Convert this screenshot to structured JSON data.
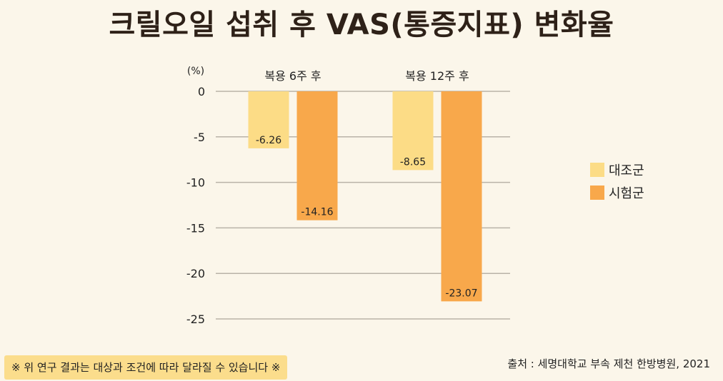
{
  "title": "크릴오일 섭취 후 VAS(통증지표) 변화율",
  "disclaimer": "※ 위 연구 결과는 대상과 조건에 따라 달라질 수 있습니다 ※",
  "source": "출처 : 세명대학교 부속 제천 한방병원, 2021",
  "chart_data": {
    "type": "bar",
    "unit_label": "(%)",
    "categories": [
      "복용 6주 후",
      "복용 12주 후"
    ],
    "series": [
      {
        "name": "대조군",
        "values": [
          -6.26,
          -8.65
        ],
        "color": "#fcdc86"
      },
      {
        "name": "시험군",
        "values": [
          -14.16,
          -23.07
        ],
        "color": "#f8a84b"
      }
    ],
    "value_labels": [
      [
        "-6.26",
        "-8.65"
      ],
      [
        "-14.16",
        "-23.07"
      ]
    ],
    "y_ticks": [
      0,
      -5,
      -10,
      -15,
      -20,
      -25
    ],
    "ylim": [
      -25,
      0
    ],
    "grid": true,
    "legend": "right"
  }
}
